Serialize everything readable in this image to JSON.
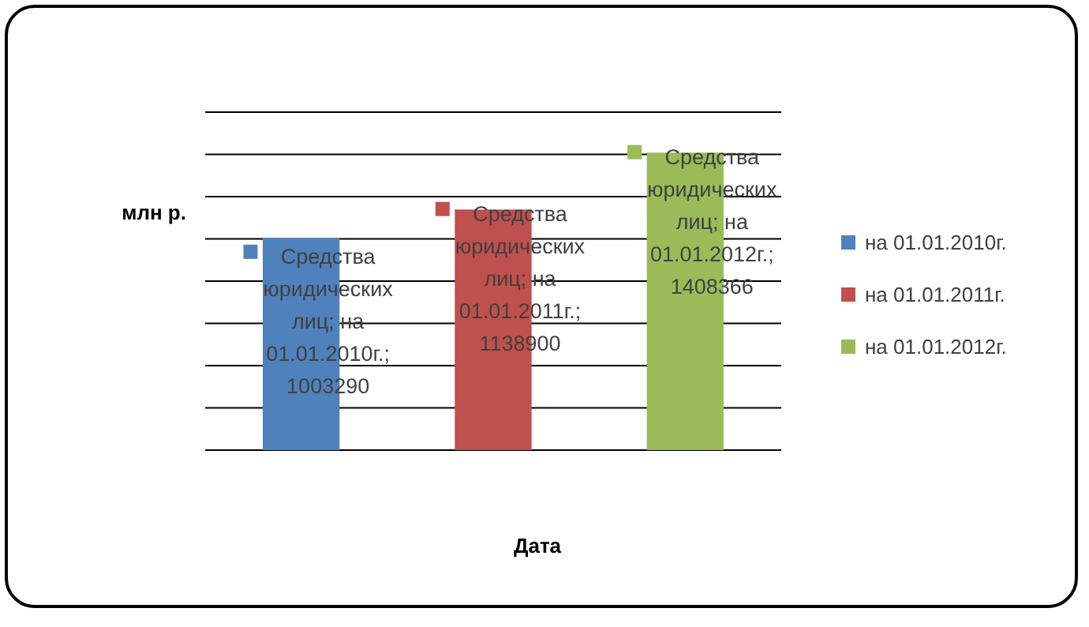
{
  "chart_data": {
    "type": "bar",
    "stacked": true,
    "ylabel": "млн р.",
    "xlabel": "Дата",
    "categories": [
      null,
      null,
      null
    ],
    "series": [
      {
        "name": "на 01.01.2010г.",
        "color": "#4f81bd",
        "values": [
          1003290,
          null,
          null
        ],
        "value_labels": [
          "Средства юридических лиц; на 01.01.2010г.; 1003290",
          null,
          null
        ]
      },
      {
        "name": "на 01.01.2011г.",
        "color": "#c0504d",
        "values": [
          null,
          1138900,
          null
        ],
        "value_labels": [
          null,
          "Средства юридических лиц; на 01.01.2011г.; 1138900",
          null
        ]
      },
      {
        "name": "на 01.01.2012г.",
        "color": "#9bbb59",
        "values": [
          null,
          null,
          1408366
        ],
        "value_labels": [
          null,
          null,
          "Средства юридических лиц; на 01.01.2012г.; 1408366"
        ]
      }
    ],
    "ylim": [
      0,
      1600000
    ],
    "yticks": [
      {
        "value": 0,
        "label": null
      },
      {
        "value": 200000,
        "label": null
      },
      {
        "value": 400000,
        "label": null
      },
      {
        "value": 600000,
        "label": null
      },
      {
        "value": 800000,
        "label": null
      },
      {
        "value": 1000000,
        "label": null
      },
      {
        "value": 1200000,
        "label": null
      },
      {
        "value": 1400000,
        "label": null
      },
      {
        "value": 1600000,
        "label": null
      }
    ],
    "grid": true,
    "legend": "right"
  }
}
